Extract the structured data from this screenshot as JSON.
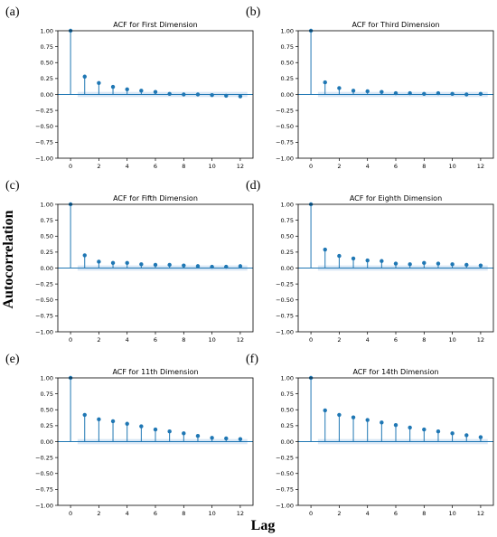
{
  "figure": {
    "ylabel": "Autocorrelation",
    "xlabel": "Lag"
  },
  "colors": {
    "stem": "#1f77b4",
    "band": "#b9d3ec",
    "axis": "#000000"
  },
  "chart_data": [
    {
      "type": "stem",
      "letter": "(a)",
      "title": "ACF for First Dimension",
      "ylim": [
        -1.0,
        1.0
      ],
      "yticks": [
        "1.00",
        "0.75",
        "0.50",
        "0.25",
        "0.00",
        "−0.25",
        "−0.50",
        "−0.75",
        "−1.00"
      ],
      "xticks": [
        "0",
        "2",
        "4",
        "6",
        "8",
        "10",
        "12"
      ],
      "lags": [
        0,
        1,
        2,
        3,
        4,
        5,
        6,
        7,
        8,
        9,
        10,
        11,
        12
      ],
      "values": [
        1.0,
        0.28,
        0.18,
        0.12,
        0.08,
        0.06,
        0.04,
        0.01,
        0.0,
        0.0,
        -0.01,
        -0.02,
        -0.03
      ]
    },
    {
      "type": "stem",
      "letter": "(b)",
      "title": "ACF for Third Dimension",
      "ylim": [
        -1.0,
        1.0
      ],
      "yticks": [
        "1.00",
        "0.75",
        "0.50",
        "0.25",
        "0.00",
        "−0.25",
        "−0.50",
        "−0.75",
        "−1.00"
      ],
      "xticks": [
        "0",
        "2",
        "4",
        "6",
        "8",
        "10",
        "12"
      ],
      "lags": [
        0,
        1,
        2,
        3,
        4,
        5,
        6,
        7,
        8,
        9,
        10,
        11,
        12
      ],
      "values": [
        1.0,
        0.19,
        0.1,
        0.06,
        0.05,
        0.04,
        0.02,
        0.02,
        0.01,
        0.02,
        0.01,
        0.0,
        0.01
      ]
    },
    {
      "type": "stem",
      "letter": "(c)",
      "title": "ACF for Fifth Dimension",
      "ylim": [
        -1.0,
        1.0
      ],
      "yticks": [
        "1.00",
        "0.75",
        "0.50",
        "0.25",
        "0.00",
        "−0.25",
        "−0.50",
        "−0.75",
        "−1.00"
      ],
      "xticks": [
        "0",
        "2",
        "4",
        "6",
        "8",
        "10",
        "12"
      ],
      "lags": [
        0,
        1,
        2,
        3,
        4,
        5,
        6,
        7,
        8,
        9,
        10,
        11,
        12
      ],
      "values": [
        1.0,
        0.2,
        0.1,
        0.08,
        0.08,
        0.06,
        0.05,
        0.05,
        0.04,
        0.03,
        0.02,
        0.02,
        0.03
      ]
    },
    {
      "type": "stem",
      "letter": "(d)",
      "title": "ACF for Eighth Dimension",
      "ylim": [
        -1.0,
        1.0
      ],
      "yticks": [
        "1.00",
        "0.75",
        "0.50",
        "0.25",
        "0.00",
        "−0.25",
        "−0.50",
        "−0.75",
        "−1.00"
      ],
      "xticks": [
        "0",
        "2",
        "4",
        "6",
        "8",
        "10",
        "12"
      ],
      "lags": [
        0,
        1,
        2,
        3,
        4,
        5,
        6,
        7,
        8,
        9,
        10,
        11,
        12
      ],
      "values": [
        1.0,
        0.29,
        0.19,
        0.15,
        0.12,
        0.11,
        0.07,
        0.06,
        0.08,
        0.07,
        0.06,
        0.05,
        0.04
      ]
    },
    {
      "type": "stem",
      "letter": "(e)",
      "title": "ACF for 11th Dimension",
      "ylim": [
        -1.0,
        1.0
      ],
      "yticks": [
        "1.00",
        "0.75",
        "0.50",
        "0.25",
        "0.00",
        "−0.25",
        "−0.50",
        "−0.75",
        "−1.00"
      ],
      "xticks": [
        "0",
        "2",
        "4",
        "6",
        "8",
        "10",
        "12"
      ],
      "lags": [
        0,
        1,
        2,
        3,
        4,
        5,
        6,
        7,
        8,
        9,
        10,
        11,
        12
      ],
      "values": [
        1.0,
        0.42,
        0.35,
        0.32,
        0.28,
        0.24,
        0.19,
        0.16,
        0.13,
        0.09,
        0.06,
        0.05,
        0.04
      ]
    },
    {
      "type": "stem",
      "letter": "(f)",
      "title": "ACF for 14th Dimension",
      "ylim": [
        -1.0,
        1.0
      ],
      "yticks": [
        "1.00",
        "0.75",
        "0.50",
        "0.25",
        "0.00",
        "−0.25",
        "−0.50",
        "−0.75",
        "−1.00"
      ],
      "xticks": [
        "0",
        "2",
        "4",
        "6",
        "8",
        "10",
        "12"
      ],
      "lags": [
        0,
        1,
        2,
        3,
        4,
        5,
        6,
        7,
        8,
        9,
        10,
        11,
        12
      ],
      "values": [
        1.0,
        0.49,
        0.42,
        0.38,
        0.34,
        0.3,
        0.26,
        0.22,
        0.19,
        0.16,
        0.13,
        0.1,
        0.07
      ]
    }
  ]
}
